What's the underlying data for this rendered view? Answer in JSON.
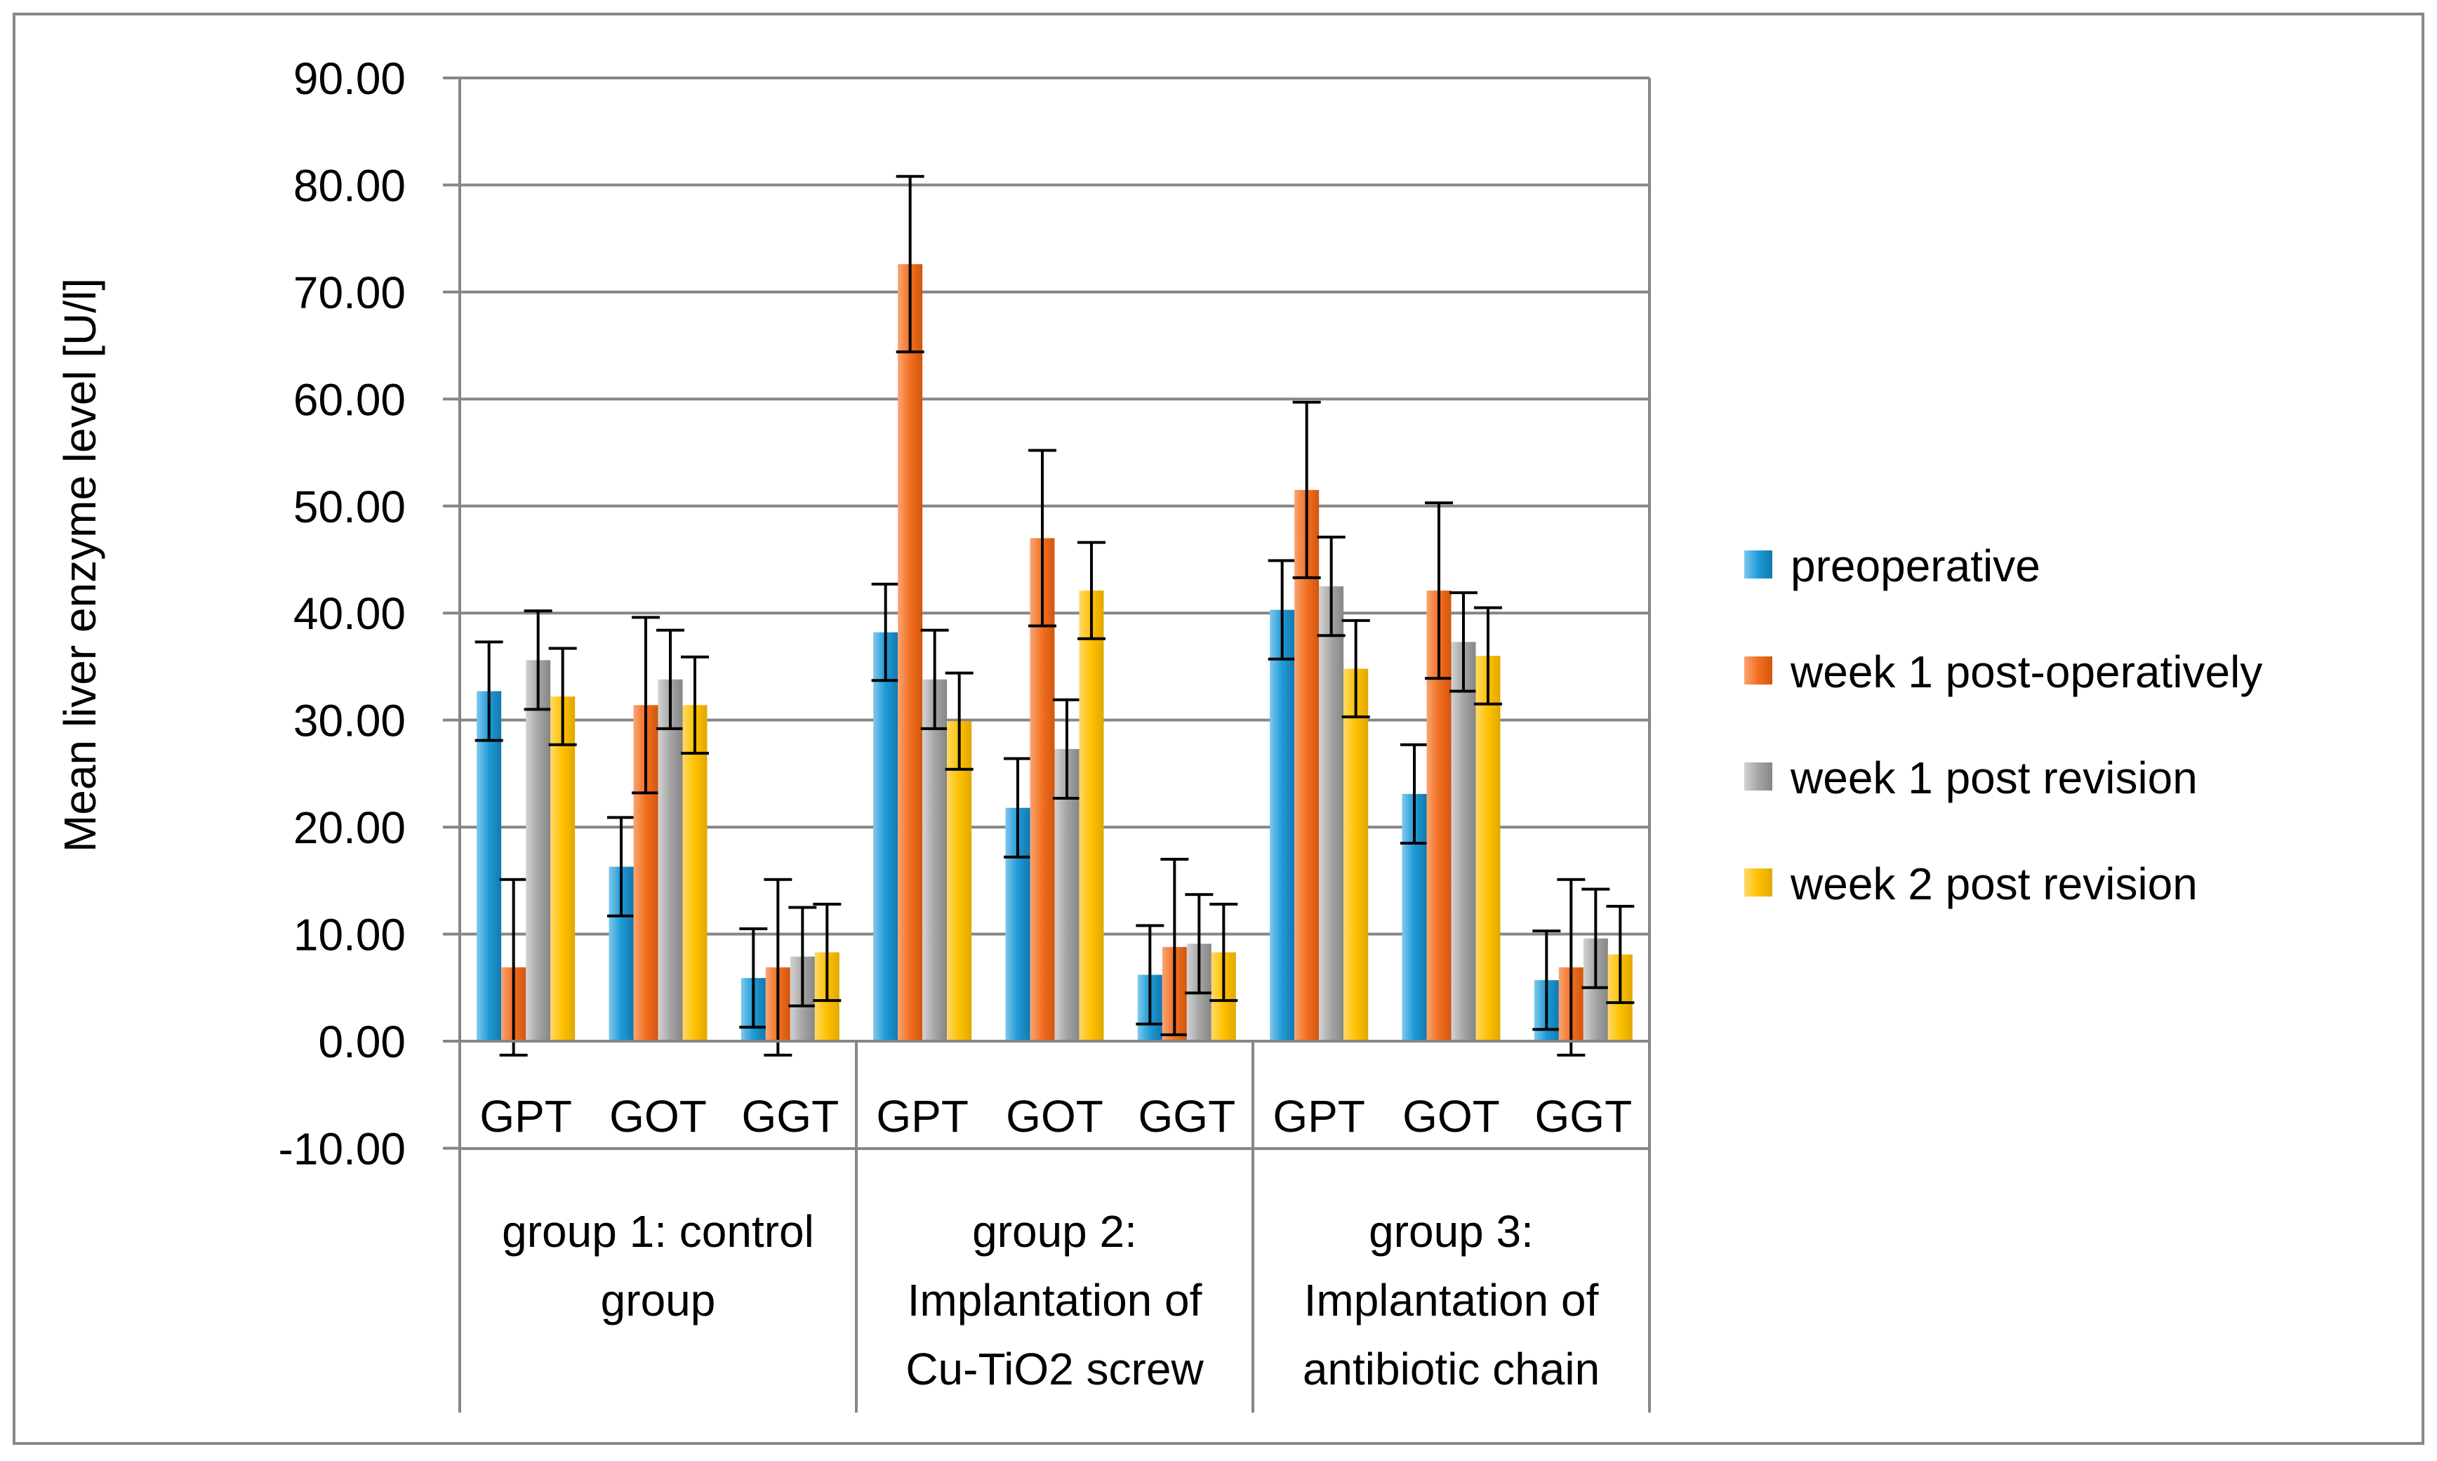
{
  "chart_data": {
    "type": "bar",
    "title": "",
    "ylabel": "Mean liver enzyme level [U/l]",
    "xlabel": "",
    "ylim": [
      -10,
      90
    ],
    "yticks": [
      90,
      80,
      70,
      60,
      50,
      40,
      30,
      20,
      10,
      0,
      -10
    ],
    "ytick_labels": [
      "90.00",
      "80.00",
      "70.00",
      "60.00",
      "50.00",
      "40.00",
      "30.00",
      "20.00",
      "10.00",
      "0.00",
      "-10.00"
    ],
    "grid": true,
    "legend_position": "right",
    "groups": [
      {
        "label": [
          "group 1: control",
          "group"
        ],
        "enzymes": [
          "GPT",
          "GOT",
          "GGT"
        ]
      },
      {
        "label": [
          "group 2:",
          "Implantation of",
          "Cu-TiO2 screw"
        ],
        "enzymes": [
          "GPT",
          "GOT",
          "GGT"
        ]
      },
      {
        "label": [
          "group 3:",
          "Implantation of",
          "antibiotic chain"
        ],
        "enzymes": [
          "GPT",
          "GOT",
          "GGT"
        ]
      }
    ],
    "series": [
      {
        "name": "preoperative",
        "color": "#1f9ad6",
        "values": [
          32.7,
          16.3,
          5.9,
          38.2,
          21.8,
          6.2,
          40.3,
          23.1,
          5.7
        ],
        "errors": [
          4.6,
          4.6,
          4.6,
          4.5,
          4.6,
          4.6,
          4.6,
          4.6,
          4.6
        ]
      },
      {
        "name": "week 1 post-operatively",
        "color": "#f26f21",
        "values": [
          6.9,
          31.4,
          6.9,
          72.6,
          47.0,
          8.8,
          51.5,
          42.1,
          6.9
        ],
        "errors": [
          8.2,
          8.2,
          8.2,
          8.2,
          8.2,
          8.2,
          8.2,
          8.2,
          8.2
        ]
      },
      {
        "name": "week 1 post revision",
        "color": "#a5a5a5",
        "values": [
          35.6,
          33.8,
          7.9,
          33.8,
          27.3,
          9.1,
          42.5,
          37.3,
          9.6
        ],
        "errors": [
          4.6,
          4.6,
          4.6,
          4.6,
          4.6,
          4.6,
          4.6,
          4.6,
          4.6
        ]
      },
      {
        "name": "week 2 post revision",
        "color": "#ffc000",
        "values": [
          32.2,
          31.4,
          8.3,
          29.9,
          42.1,
          8.3,
          34.8,
          36.0,
          8.1
        ],
        "errors": [
          4.5,
          4.5,
          4.5,
          4.5,
          4.5,
          4.5,
          4.5,
          4.5,
          4.5
        ]
      }
    ]
  }
}
